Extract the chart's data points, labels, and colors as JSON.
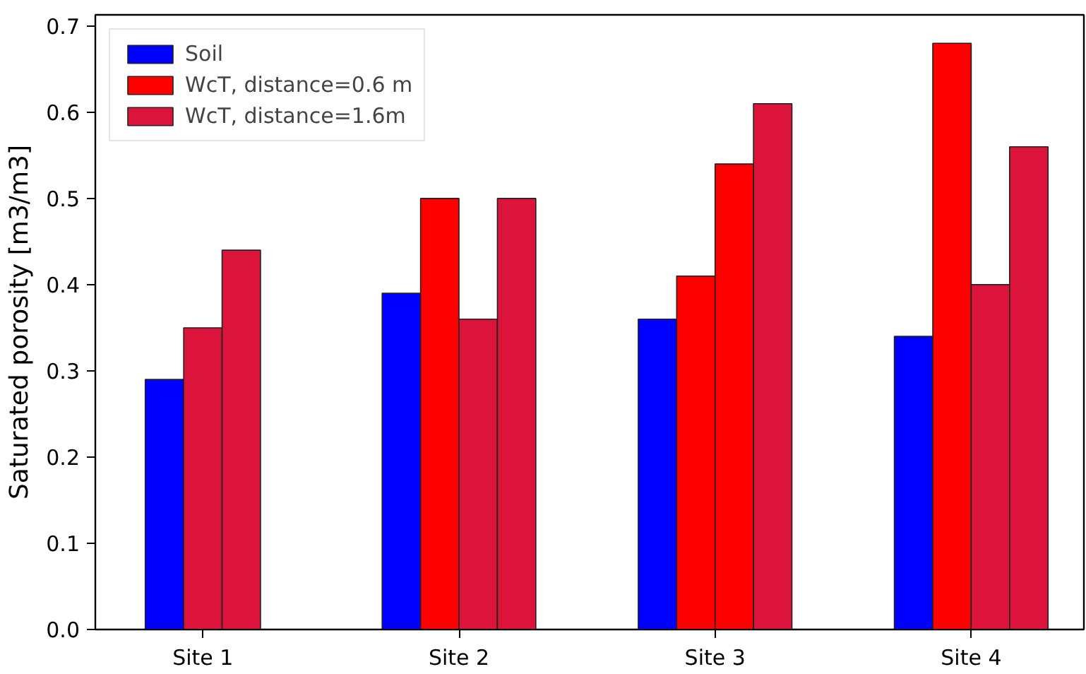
{
  "chart_data": {
    "type": "bar",
    "ylabel": "Saturated porosity [m3/m3]",
    "categories": [
      "Site 1",
      "Site 2",
      "Site 3",
      "Site 4"
    ],
    "ylim": [
      0,
      0.713
    ],
    "yticks": [
      {
        "value": 0,
        "label": "0.0"
      },
      0.1,
      0.2,
      0.3,
      0.4,
      0.5,
      0.6,
      0.7
    ],
    "series": [
      {
        "name": "Soil",
        "color": "#0000ff",
        "values": [
          0.29,
          0.39,
          0.36,
          0.34
        ]
      },
      {
        "name": "WcT, distance=0.6 m",
        "color": "#ff0000",
        "values": [
          null,
          0.5,
          0.41,
          0.68
        ]
      },
      {
        "colors": [
          "#dc143c",
          "#dc143c",
          "#ff0000",
          "#dc143c"
        ],
        "values": [
          0.35,
          0.36,
          0.54,
          0.4
        ]
      },
      {
        "name": "WcT, distance=1.6m",
        "color": "#dc143c",
        "values": [
          0.44,
          0.5,
          0.61,
          0.56
        ]
      }
    ],
    "legend": "top left",
    "grid": false
  }
}
